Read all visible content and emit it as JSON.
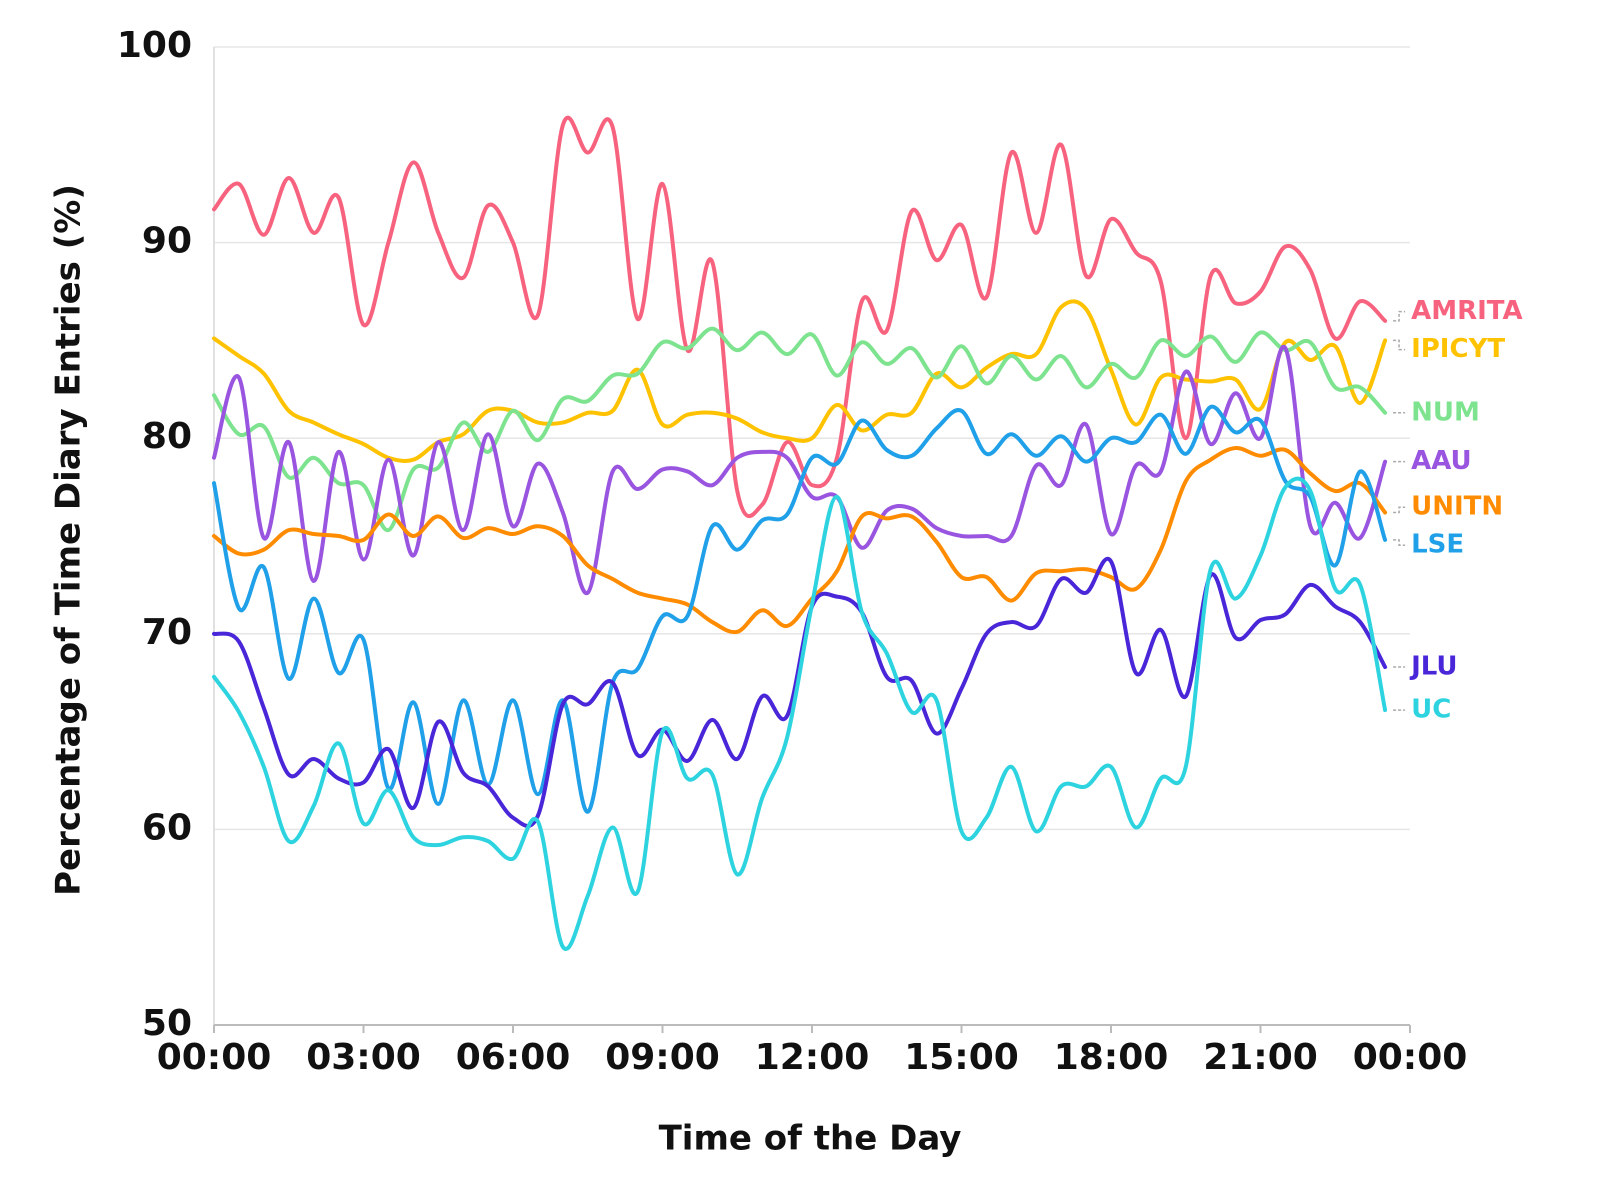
{
  "chart_data": {
    "type": "line",
    "x_label": "Time of the Day",
    "y_label": "Percentage of Time Diary Entries (%)",
    "x": [
      0,
      0.5,
      1,
      1.5,
      2,
      2.5,
      3,
      3.5,
      4,
      4.5,
      5,
      5.5,
      6,
      6.5,
      7,
      7.5,
      8,
      8.5,
      9,
      9.5,
      10,
      10.5,
      11,
      11.5,
      12,
      12.5,
      13,
      13.5,
      14,
      14.5,
      15,
      15.5,
      16,
      16.5,
      17,
      17.5,
      18,
      18.5,
      19,
      19.5,
      20,
      20.5,
      21,
      21.5,
      22,
      22.5,
      23,
      23.5
    ],
    "xlim": [
      0,
      24
    ],
    "xticks": [
      {
        "value": 0,
        "label": "00:00"
      },
      {
        "value": 3,
        "label": "03:00"
      },
      {
        "value": 6,
        "label": "06:00"
      },
      {
        "value": 9,
        "label": "09:00"
      },
      {
        "value": 12,
        "label": "12:00"
      },
      {
        "value": 15,
        "label": "15:00"
      },
      {
        "value": 18,
        "label": "18:00"
      },
      {
        "value": 21,
        "label": "21:00"
      },
      {
        "value": 24,
        "label": "00:00"
      }
    ],
    "ylim": [
      50,
      100
    ],
    "yticks": [
      50,
      60,
      70,
      80,
      90,
      100
    ],
    "grid": true,
    "series": [
      {
        "name": "AMRITA",
        "color": "#f7637f",
        "values": [
          91.7,
          93,
          90.4,
          93.3,
          90.5,
          92.3,
          85.8,
          90,
          94.1,
          90.5,
          88.2,
          91.9,
          90,
          86.3,
          96,
          94.6,
          95.9,
          86.1,
          93,
          84.5,
          89,
          77.3,
          76.6,
          79.8,
          77.6,
          79,
          87,
          85.5,
          91.6,
          89.1,
          90.9,
          87.2,
          94.6,
          90.5,
          95,
          88.3,
          91.2,
          89.5,
          88,
          80,
          88.3,
          86.9,
          87.5,
          89.8,
          88.6,
          85.1,
          87,
          86
        ]
      },
      {
        "name": "IPICYT",
        "color": "#ffc200",
        "values": [
          85.1,
          84.2,
          83.3,
          81.4,
          80.8,
          80.2,
          79.7,
          79,
          78.9,
          79.8,
          80.2,
          81.4,
          81.4,
          80.8,
          80.8,
          81.3,
          81.4,
          83.5,
          80.7,
          81.2,
          81.3,
          81,
          80.3,
          80,
          80,
          81.7,
          80.4,
          81.2,
          81.3,
          83.3,
          82.6,
          83.6,
          84.3,
          84.3,
          86.7,
          86.6,
          83.5,
          80.7,
          83.1,
          83,
          82.9,
          83,
          81.5,
          84.9,
          84,
          84.7,
          81.8,
          85
        ]
      },
      {
        "name": "NUM",
        "color": "#7de38f",
        "values": [
          82.2,
          80.2,
          80.6,
          78,
          79,
          77.7,
          77.6,
          75.3,
          78.4,
          78.5,
          80.8,
          79.3,
          81.4,
          79.9,
          82,
          81.9,
          83.2,
          83.3,
          84.9,
          84.6,
          85.6,
          84.5,
          85.4,
          84.3,
          85.3,
          83.2,
          84.9,
          83.8,
          84.6,
          83.1,
          84.7,
          82.8,
          84.2,
          83,
          84.2,
          82.6,
          83.8,
          83.1,
          85,
          84.2,
          85.2,
          83.9,
          85.4,
          84.5,
          84.9,
          82.6,
          82.6,
          81.3
        ]
      },
      {
        "name": "AAU",
        "color": "#9955e0",
        "values": [
          79,
          83.1,
          74.9,
          79.8,
          72.7,
          79.3,
          73.8,
          78.9,
          74,
          79.8,
          75.3,
          80.2,
          75.5,
          78.7,
          76.2,
          72.1,
          78.3,
          77.4,
          78.4,
          78.3,
          77.6,
          79,
          79.3,
          79,
          77,
          77,
          74.4,
          76.3,
          76.4,
          75.4,
          75,
          75,
          75,
          78.6,
          77.6,
          80.7,
          75.1,
          78.6,
          78.3,
          83.4,
          79.7,
          82.3,
          80,
          84.6,
          75.5,
          76.7,
          74.9,
          78.8
        ]
      },
      {
        "name": "UNITN",
        "color": "#ff8c00",
        "values": [
          75,
          74.1,
          74.3,
          75.3,
          75.1,
          75,
          74.8,
          76.1,
          75,
          76,
          74.9,
          75.4,
          75.1,
          75.5,
          75,
          73.5,
          72.8,
          72.1,
          71.8,
          71.5,
          70.6,
          70.1,
          71.2,
          70.4,
          71.8,
          73.2,
          76,
          75.9,
          76,
          74.7,
          72.9,
          72.9,
          71.7,
          73.1,
          73.2,
          73.3,
          72.9,
          72.3,
          74.3,
          77.8,
          78.9,
          79.5,
          79.1,
          79.4,
          78.2,
          77.3,
          77.7,
          76.2
        ]
      },
      {
        "name": "LSE",
        "color": "#1fa0e8",
        "values": [
          77.7,
          71.3,
          73.4,
          67.7,
          71.8,
          68,
          69.7,
          62.1,
          66.5,
          61.3,
          66.6,
          62.3,
          66.6,
          61.8,
          66.6,
          60.9,
          67.5,
          68.2,
          70.9,
          70.9,
          75.5,
          74.3,
          75.8,
          76.1,
          79,
          78.7,
          80.9,
          79.4,
          79.1,
          80.5,
          81.4,
          79.2,
          80.2,
          79.1,
          80.1,
          78.8,
          80,
          79.8,
          81.2,
          79.2,
          81.6,
          80.3,
          80.9,
          77.8,
          77,
          73.5,
          78.3,
          74.8
        ]
      },
      {
        "name": "JLU",
        "color": "#4a26d9",
        "values": [
          70,
          69.6,
          66.2,
          62.8,
          63.6,
          62.6,
          62.4,
          64.1,
          61.1,
          65.5,
          62.9,
          62.2,
          60.6,
          60.7,
          66.4,
          66.4,
          67.5,
          63.8,
          65.1,
          63.5,
          65.6,
          63.6,
          66.8,
          65.8,
          71.4,
          71.9,
          71.1,
          67.8,
          67.6,
          64.9,
          67.2,
          70,
          70.6,
          70.4,
          72.8,
          72.1,
          73.7,
          68,
          70.2,
          66.8,
          73,
          69.8,
          70.7,
          71,
          72.5,
          71.4,
          70.6,
          68.3
        ]
      },
      {
        "name": "UC",
        "color": "#2ed3e0",
        "values": [
          67.8,
          66,
          63.2,
          59.4,
          61.2,
          64.4,
          60.3,
          62,
          59.6,
          59.2,
          59.6,
          59.4,
          58.5,
          60.4,
          54,
          56.6,
          60.1,
          56.8,
          65,
          62.6,
          62.8,
          57.7,
          61.6,
          64.7,
          71.5,
          77,
          71.1,
          69,
          66,
          66.6,
          59.9,
          60.6,
          63.2,
          59.9,
          62.2,
          62.2,
          63.2,
          60.1,
          62.6,
          63.2,
          73.3,
          71.8,
          74,
          77.5,
          77.3,
          72.3,
          72.5,
          66.1
        ]
      }
    ]
  }
}
